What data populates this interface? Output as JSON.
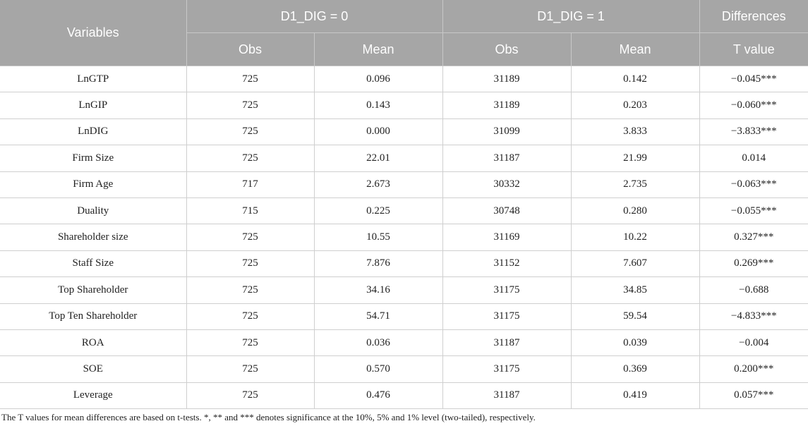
{
  "table": {
    "header_top": [
      "Variables",
      "D1_DIG = 0",
      "D1_DIG = 1",
      "Differences"
    ],
    "header_sub": [
      "Obs",
      "Mean",
      "Obs",
      "Mean",
      "T value"
    ],
    "rows": [
      [
        "LnGTP",
        "725",
        "0.096",
        "31189",
        "0.142",
        "−0.045***"
      ],
      [
        "LnGIP",
        "725",
        "0.143",
        "31189",
        "0.203",
        "−0.060***"
      ],
      [
        "LnDIG",
        "725",
        "0.000",
        "31099",
        "3.833",
        "−3.833***"
      ],
      [
        "Firm Size",
        "725",
        "22.01",
        "31187",
        "21.99",
        "0.014"
      ],
      [
        "Firm Age",
        "717",
        "2.673",
        "30332",
        "2.735",
        "−0.063***"
      ],
      [
        "Duality",
        "715",
        "0.225",
        "30748",
        "0.280",
        "−0.055***"
      ],
      [
        "Shareholder size",
        "725",
        "10.55",
        "31169",
        "10.22",
        "0.327***"
      ],
      [
        "Staff Size",
        "725",
        "7.876",
        "31152",
        "7.607",
        "0.269***"
      ],
      [
        "Top Shareholder",
        "725",
        "34.16",
        "31175",
        "34.85",
        "−0.688"
      ],
      [
        "Top Ten Shareholder",
        "725",
        "54.71",
        "31175",
        "59.54",
        "−4.833***"
      ],
      [
        "ROA",
        "725",
        "0.036",
        "31187",
        "0.039",
        "−0.004"
      ],
      [
        "SOE",
        "725",
        "0.570",
        "31175",
        "0.369",
        "0.200***"
      ],
      [
        "Leverage",
        "725",
        "0.476",
        "31187",
        "0.419",
        "0.057***"
      ]
    ],
    "footnote": "The T values for mean differences are based on t-tests. *, ** and *** denotes significance at the 10%, 5% and 1% level (two-tailed), respectively."
  }
}
